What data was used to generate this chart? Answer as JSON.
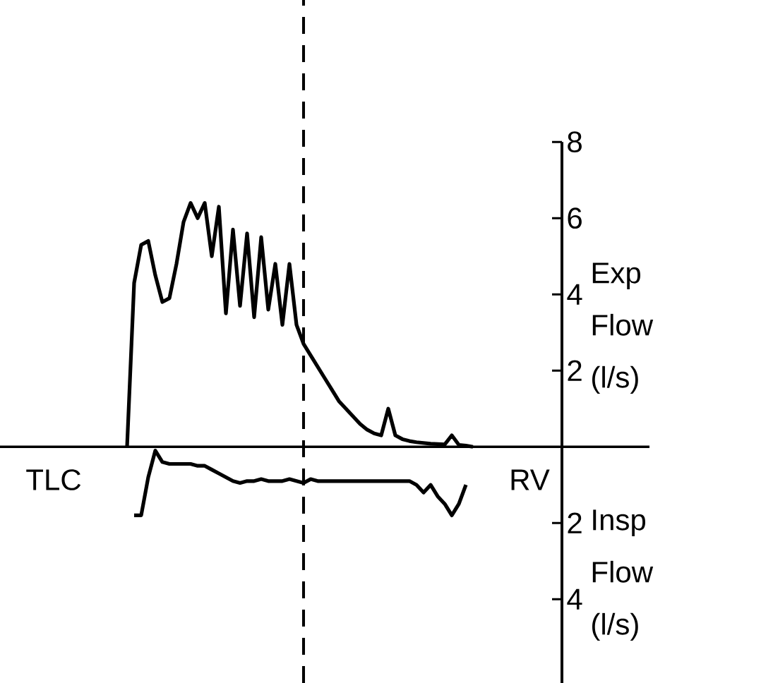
{
  "chart_data": {
    "type": "line",
    "categories": [
      null,
      null,
      null,
      null,
      null,
      null,
      null,
      null,
      null,
      null,
      null,
      null,
      null,
      null,
      null,
      null,
      null,
      null,
      null,
      null,
      null,
      null,
      null,
      null,
      null,
      null,
      null,
      null,
      null,
      null,
      null,
      null,
      null,
      null,
      null,
      null,
      null,
      null,
      null,
      null,
      null,
      null,
      null,
      null,
      null,
      null,
      null,
      null,
      null,
      null
    ],
    "series": [
      {
        "color": "#000000",
        "values": [
          0,
          4.3,
          5.3,
          5.4,
          4.5,
          3.8,
          3.9,
          4.8,
          5.9,
          6.4,
          6.0,
          6.4,
          5.0,
          6.3,
          3.5,
          5.7,
          3.7,
          5.6,
          3.4,
          5.5,
          3.6,
          4.8,
          3.2,
          4.8,
          3.2,
          2.7,
          2.4,
          2.1,
          1.8,
          1.5,
          1.2,
          1.0,
          0.8,
          0.6,
          0.45,
          0.35,
          0.3,
          1.0,
          0.3,
          0.2,
          0.15,
          0.12,
          0.1,
          0.08,
          0.07,
          0.06,
          0.3,
          0.05,
          0.03,
          0
        ]
      },
      {
        "color": "#000000",
        "values": [
          null,
          -1.8,
          -1.8,
          -0.8,
          -0.1,
          -0.4,
          -0.45,
          -0.45,
          -0.45,
          -0.45,
          -0.5,
          -0.5,
          -0.6,
          -0.7,
          -0.8,
          -0.9,
          -0.95,
          -0.9,
          -0.9,
          -0.85,
          -0.9,
          -0.9,
          -0.9,
          -0.85,
          -0.9,
          -0.95,
          -0.85,
          -0.9,
          -0.9,
          -0.9,
          -0.9,
          -0.9,
          -0.9,
          -0.9,
          -0.9,
          -0.9,
          -0.9,
          -0.9,
          -0.9,
          -0.9,
          -0.9,
          -1.0,
          -1.2,
          -1.0,
          -1.3,
          -1.5,
          -1.8,
          -1.5,
          -1.0,
          null
        ]
      }
    ],
    "ylim": [
      -6.2,
      8
    ],
    "yticks": [
      8,
      6,
      4,
      2,
      {
        "value": -2,
        "label": "2"
      },
      {
        "value": -4,
        "label": "4"
      }
    ],
    "annotations": [
      "TLC",
      "RV",
      "Exp Flow (l/s)",
      "Insp Flow (l/s)"
    ],
    "marker": "none",
    "line_style": "solid"
  }
}
